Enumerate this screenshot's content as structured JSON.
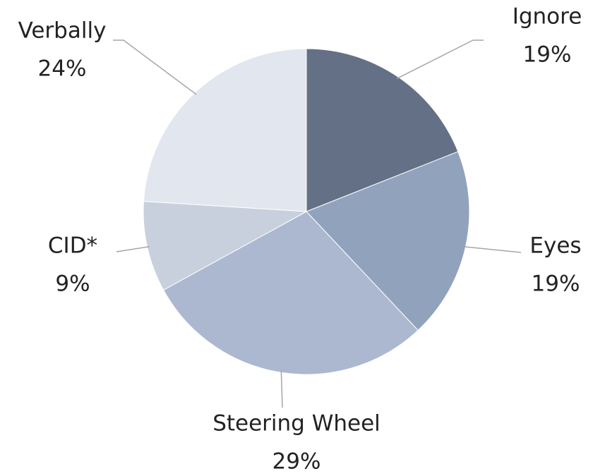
{
  "chart_data": {
    "type": "pie",
    "categories": [
      "Ignore",
      "Eyes",
      "Steering Wheel",
      "CID*",
      "Verbally"
    ],
    "values": [
      19,
      19,
      29,
      9,
      24
    ],
    "value_labels": [
      "19%",
      "19%",
      "29%",
      "9%",
      "24%"
    ],
    "colors": [
      "#647086",
      "#91a2bd",
      "#abb8d0",
      "#c8cfdd",
      "#e2e6ee"
    ]
  }
}
